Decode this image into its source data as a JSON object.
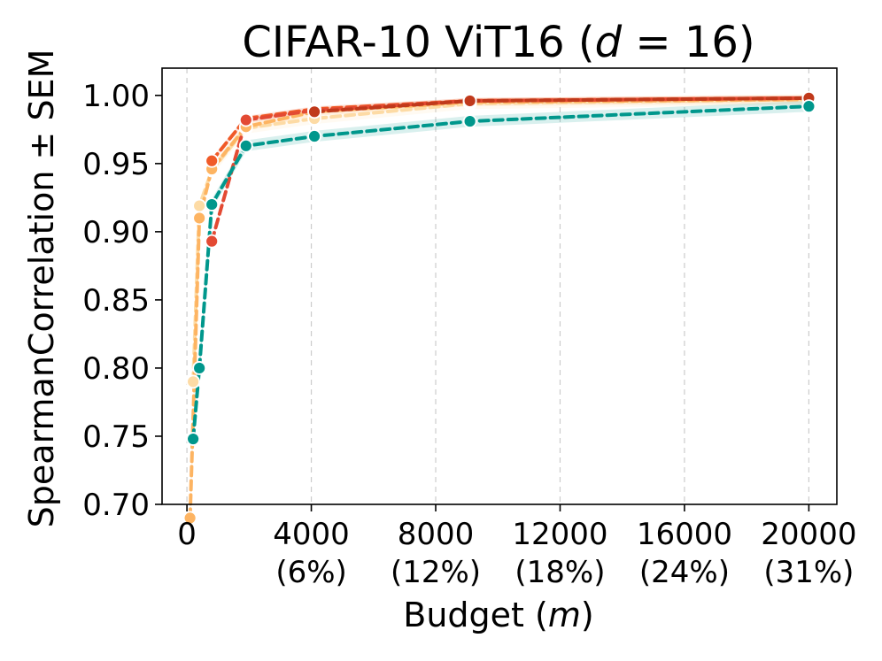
{
  "chart_data": {
    "type": "line",
    "title_main": "CIFAR-10 ViT16 (",
    "title_var": "d",
    "title_rest": " = 16)",
    "xlabel_main": "Budget (",
    "xlabel_var": "m",
    "xlabel_rest": ")",
    "ylabel": "SpearmanCorrelation ± SEM",
    "xlim": [
      -800,
      20900
    ],
    "ylim": [
      0.7,
      1.02
    ],
    "grid": "x-only dashed",
    "x_ticks": [
      {
        "value": 0,
        "label": "0",
        "sub": ""
      },
      {
        "value": 4000,
        "label": "4000",
        "sub": "(6%)"
      },
      {
        "value": 8000,
        "label": "8000",
        "sub": "(12%)"
      },
      {
        "value": 12000,
        "label": "12000",
        "sub": "(18%)"
      },
      {
        "value": 16000,
        "label": "16000",
        "sub": "(24%)"
      },
      {
        "value": 20000,
        "label": "20000",
        "sub": "(31%)"
      }
    ],
    "y_ticks": [
      {
        "value": 0.7,
        "label": "0.70"
      },
      {
        "value": 0.75,
        "label": "0.75"
      },
      {
        "value": 0.8,
        "label": "0.80"
      },
      {
        "value": 0.85,
        "label": "0.85"
      },
      {
        "value": 0.9,
        "label": "0.90"
      },
      {
        "value": 0.95,
        "label": "0.95"
      },
      {
        "value": 1.0,
        "label": "1.00"
      }
    ],
    "series": [
      {
        "color": "#fddba5",
        "dash": "10,6",
        "x": [
          200,
          400,
          800,
          1900,
          4100,
          9100,
          20000
        ],
        "y": [
          0.79,
          0.919,
          0.945,
          0.976,
          0.983,
          0.994,
          0.997
        ],
        "band": 0.004
      },
      {
        "color": "#fdb462",
        "dash": "10,6",
        "x": [
          100,
          400,
          800,
          1900,
          4100,
          9100,
          20000
        ],
        "y": [
          0.69,
          0.91,
          0.946,
          0.977,
          0.988,
          0.995,
          0.997
        ],
        "band": 0.003
      },
      {
        "color": "#f05a28",
        "dash": "10,6",
        "x": [
          800,
          1900,
          4100,
          9100,
          20000
        ],
        "y": [
          0.952,
          0.983,
          0.99,
          0.996,
          0.998
        ],
        "band": 0.002
      },
      {
        "color": "#e34a33",
        "dash": "10,6",
        "x": [
          800,
          1900,
          4100,
          9100,
          20000
        ],
        "y": [
          0.893,
          0.982,
          0.989,
          0.996,
          0.998
        ],
        "band": 0.002
      },
      {
        "color": "#c0391b",
        "dash": "10,6",
        "x": [
          4100,
          9100,
          20000
        ],
        "y": [
          0.988,
          0.996,
          0.998
        ],
        "band": 0.001
      },
      {
        "color": "#00978c",
        "dash": "10,6",
        "x": [
          200,
          400,
          800,
          1900,
          4100,
          9100,
          20000
        ],
        "y": [
          0.748,
          0.8,
          0.92,
          0.963,
          0.97,
          0.981,
          0.992
        ],
        "band": 0.004
      }
    ]
  }
}
